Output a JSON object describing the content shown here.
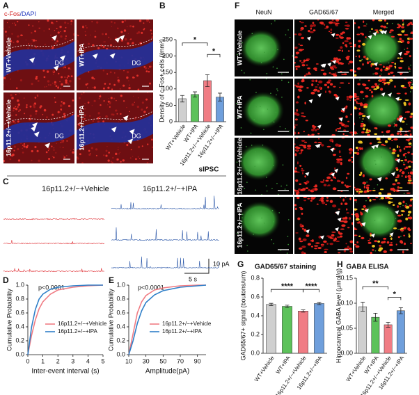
{
  "panel_labels": {
    "A": "A",
    "B": "B",
    "C": "C",
    "D": "D",
    "E": "E",
    "F": "F",
    "G": "G",
    "H": "H"
  },
  "panel_a": {
    "stain_red": "c-Fos",
    "stain_blue": "/DAPI",
    "images": [
      "WT+Vehicle",
      "WT+IPA",
      "16p11.2+/−+Vehicle",
      "16p11.2+/−+IPA"
    ],
    "region": "DG"
  },
  "panel_c": {
    "title": "sIPSC",
    "groups": [
      "16p11.2+/−+Vehicle",
      "16p11.2+/−+IPA"
    ],
    "scale_time": "5 s",
    "scale_current": "10 pA"
  },
  "panel_f": {
    "columns": [
      "NeuN",
      "GAD65/67",
      "Merged"
    ],
    "rows": [
      "WT+Vehicle",
      "WT+IPA",
      "16p11.2+/−+Vehicle",
      "16p11.2+/−+IPA"
    ]
  },
  "chart_data": [
    {
      "type": "bar",
      "ylabel": "Density of c-Fos+ cells (/mm²)",
      "categories": [
        "WT+Vehicle",
        "WT+IPA",
        "16p11.2+/−+Vehicle",
        "16p11.2+/−+IPA"
      ],
      "values": [
        70,
        83,
        125,
        75
      ],
      "errors": [
        10,
        8,
        18,
        12
      ],
      "colors": [
        "#cfcfcf",
        "#5cc25a",
        "#f07c84",
        "#6f9fdc"
      ],
      "ylim": [
        0,
        250
      ],
      "yticks": [
        0,
        50,
        100,
        150,
        200,
        250
      ],
      "annotations": [
        "*",
        "*"
      ]
    },
    {
      "type": "line",
      "xlabel": "Inter-event interval (s)",
      "ylabel": "Cumulative Probability",
      "annotation": "p<0.0001",
      "x": [
        0,
        0.25,
        0.5,
        0.75,
        1,
        1.5,
        2,
        3,
        4,
        5
      ],
      "series": [
        {
          "name": "16p11.2+/−+Vehicle",
          "color": "#f07c84",
          "values": [
            0,
            0.28,
            0.5,
            0.66,
            0.76,
            0.87,
            0.93,
            0.97,
            0.99,
            1.0
          ]
        },
        {
          "name": "16p11.2+/−+IPA",
          "color": "#2f7fc8",
          "values": [
            0,
            0.4,
            0.65,
            0.8,
            0.87,
            0.94,
            0.97,
            0.99,
            1.0,
            1.0
          ]
        }
      ],
      "xlim": [
        0,
        5
      ],
      "xticks": [
        0,
        1,
        2,
        3,
        4,
        5
      ],
      "ylim": [
        0,
        1
      ],
      "yticks": [
        {
          "value": 0,
          "label": "0.0"
        },
        0.2,
        0.4,
        0.6,
        0.8,
        {
          "value": 1,
          "label": "1.0"
        }
      ]
    },
    {
      "type": "line",
      "xlabel": "Amplitude(pA)",
      "ylabel": "Cumulative Probability",
      "annotation": "p<0.0001",
      "x": [
        10,
        15,
        20,
        25,
        30,
        40,
        50,
        70,
        90,
        100
      ],
      "series": [
        {
          "name": "16p11.2+/−+Vehicle",
          "color": "#f07c84",
          "values": [
            0,
            0.3,
            0.6,
            0.76,
            0.85,
            0.93,
            0.96,
            0.99,
            1.0,
            1.0
          ]
        },
        {
          "name": "16p11.2+/−+IPA",
          "color": "#2f7fc8",
          "values": [
            0,
            0.2,
            0.45,
            0.63,
            0.75,
            0.86,
            0.92,
            0.97,
            0.99,
            1.0
          ]
        }
      ],
      "xlim": [
        10,
        100
      ],
      "xticks": [
        10,
        30,
        50,
        70,
        90
      ],
      "ylim": [
        0,
        1
      ],
      "yticks": [
        {
          "value": 0,
          "label": "0.0"
        },
        0.2,
        0.4,
        0.6,
        0.8,
        {
          "value": 1,
          "label": "1.0"
        }
      ]
    },
    {
      "type": "bar",
      "title": "GAD65/67 staining",
      "ylabel": "GAD65/67+ signal (boutons/um)",
      "categories": [
        "WT+Vehicle",
        "WT+IPA",
        "16p11.2+/−+Vehicle",
        "16p11.2+/−+IPA"
      ],
      "values": [
        0.52,
        0.5,
        0.45,
        0.53
      ],
      "errors": [
        0.012,
        0.012,
        0.012,
        0.012
      ],
      "colors": [
        "#cfcfcf",
        "#5cc25a",
        "#f07c84",
        "#6f9fdc"
      ],
      "ylim": [
        0,
        0.8
      ],
      "yticks": [
        {
          "value": 0,
          "label": "0.0"
        },
        0.2,
        0.4,
        0.6,
        0.8
      ],
      "annotations": [
        "****",
        "****"
      ]
    },
    {
      "type": "bar",
      "title": "GABA ELISA",
      "ylabel": "Hippocampal GABA level (μmol/g)",
      "categories": [
        "WT+Vehicle",
        "WT+IPA",
        "16p11.2+/−+Vehicle",
        "16p11.2+/−+IPA"
      ],
      "values": [
        0.093,
        0.072,
        0.057,
        0.085
      ],
      "errors": [
        0.009,
        0.008,
        0.005,
        0.006
      ],
      "colors": [
        "#cfcfcf",
        "#5cc25a",
        "#f07c84",
        "#6f9fdc"
      ],
      "ylim": [
        0,
        0.15
      ],
      "yticks": [
        {
          "value": 0,
          "label": "0.00"
        },
        {
          "value": 0.05,
          "label": "0.05"
        },
        {
          "value": 0.1,
          "label": "0.10"
        },
        {
          "value": 0.15,
          "label": "0.15"
        }
      ],
      "annotations": [
        "**",
        "*"
      ]
    }
  ]
}
